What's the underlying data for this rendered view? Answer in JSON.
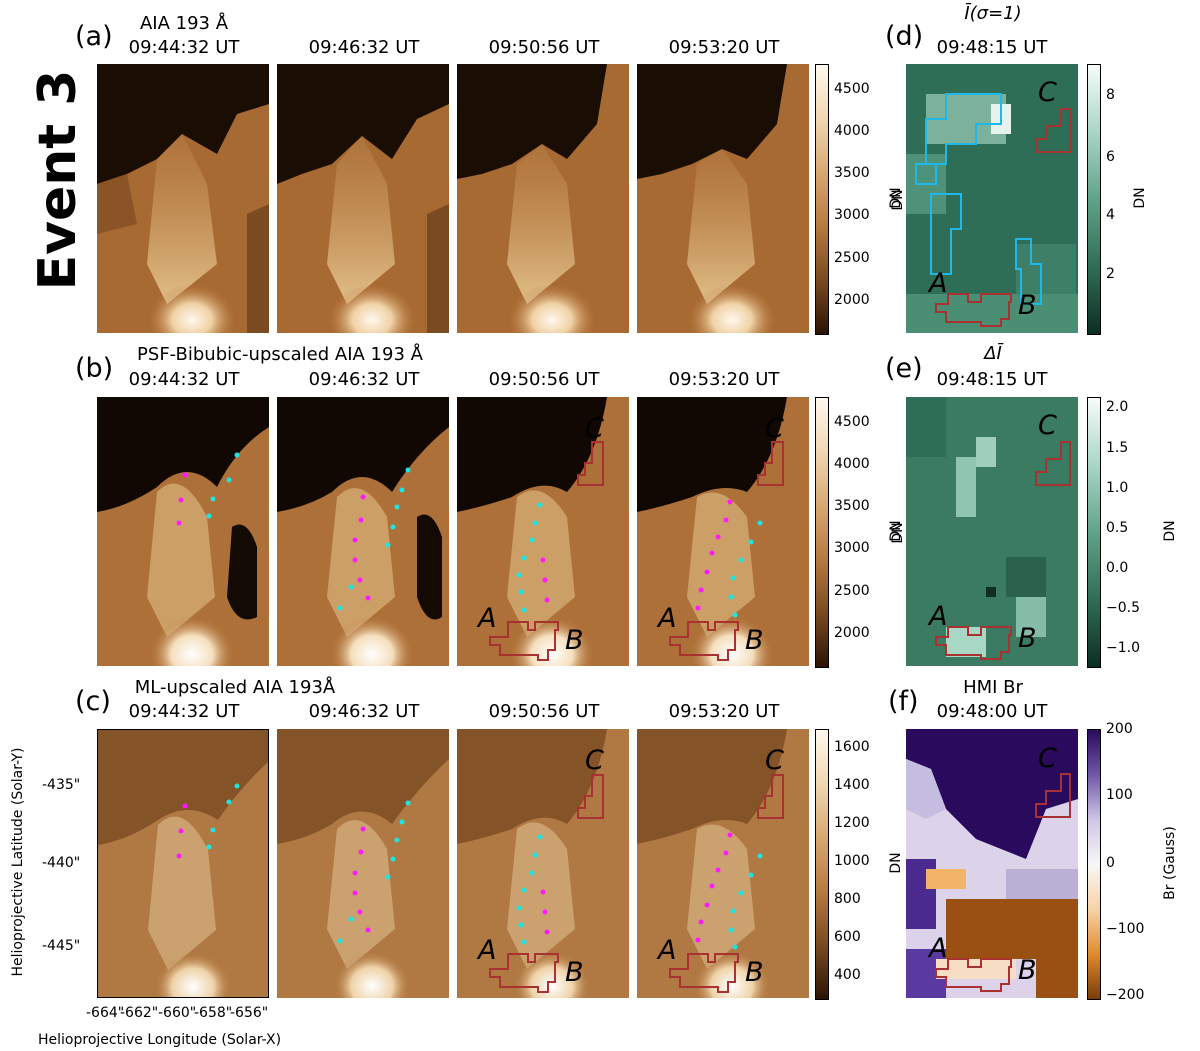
{
  "event_label": "Event 3",
  "rows": [
    {
      "panel": "(a)",
      "title": "AIA 193 Å",
      "times": [
        "09:44:32 UT",
        "09:46:32 UT",
        "09:50:56 UT",
        "09:53:20 UT"
      ],
      "colorbar": {
        "ticks": [
          "4500",
          "4000",
          "3500",
          "3000",
          "2500",
          "2000"
        ],
        "unit": "DN"
      }
    },
    {
      "panel": "(b)",
      "title": "PSF-Bibubic-upscaled AIA 193 Å",
      "times": [
        "09:44:32 UT",
        "09:46:32 UT",
        "09:50:56 UT",
        "09:53:20 UT"
      ],
      "colorbar": {
        "ticks": [
          "4500",
          "4000",
          "3500",
          "3000",
          "2500",
          "2000"
        ],
        "unit": "DN"
      }
    },
    {
      "panel": "(c)",
      "title": "ML-upscaled AIA 193Å",
      "times": [
        "09:44:32 UT",
        "09:46:32 UT",
        "09:50:56 UT",
        "09:53:20 UT"
      ],
      "colorbar": {
        "ticks": [
          "1600",
          "1400",
          "1200",
          "1000",
          "800",
          "600",
          "400"
        ],
        "unit": "DN"
      }
    }
  ],
  "right_panels": [
    {
      "panel": "(d)",
      "title": "Ī(σ=1)",
      "time": "09:48:15 UT",
      "colorbar": {
        "ticks": [
          "8",
          "6",
          "4",
          "2"
        ],
        "unit": "DN"
      },
      "left_unit": "DN"
    },
    {
      "panel": "(e)",
      "title": "ΔĪ",
      "time": "09:48:15 UT",
      "colorbar": {
        "ticks": [
          "2.0",
          "1.5",
          "1.0",
          "0.5",
          "0.0",
          "−0.5",
          "−1.0"
        ],
        "unit": "DN"
      },
      "left_unit": "DN"
    },
    {
      "panel": "(f)",
      "title": "HMI Br",
      "time": "09:48:00 UT",
      "colorbar": {
        "ticks": [
          "200",
          "100",
          "0",
          "−100",
          "−200"
        ],
        "unit": "Br (Gauss)"
      },
      "left_unit": "DN"
    }
  ],
  "region_labels": {
    "a": "A",
    "b": "B",
    "c": "C"
  },
  "axes": {
    "y_label": "Helioprojective Latitude (Solar-Y)",
    "x_label": "Helioprojective Longitude (Solar-X)",
    "y_ticks": [
      "-435\"",
      "-440\"",
      "-445\""
    ],
    "x_ticks": [
      "-664\"",
      "-662\"",
      "-660\"",
      "-658\"",
      "-656\""
    ]
  },
  "colors": {
    "region_outline": "#a83232",
    "aia_region": "#1fb8e8",
    "dots_magenta": "#ff1aff",
    "dots_cyan": "#1ae6e6"
  }
}
